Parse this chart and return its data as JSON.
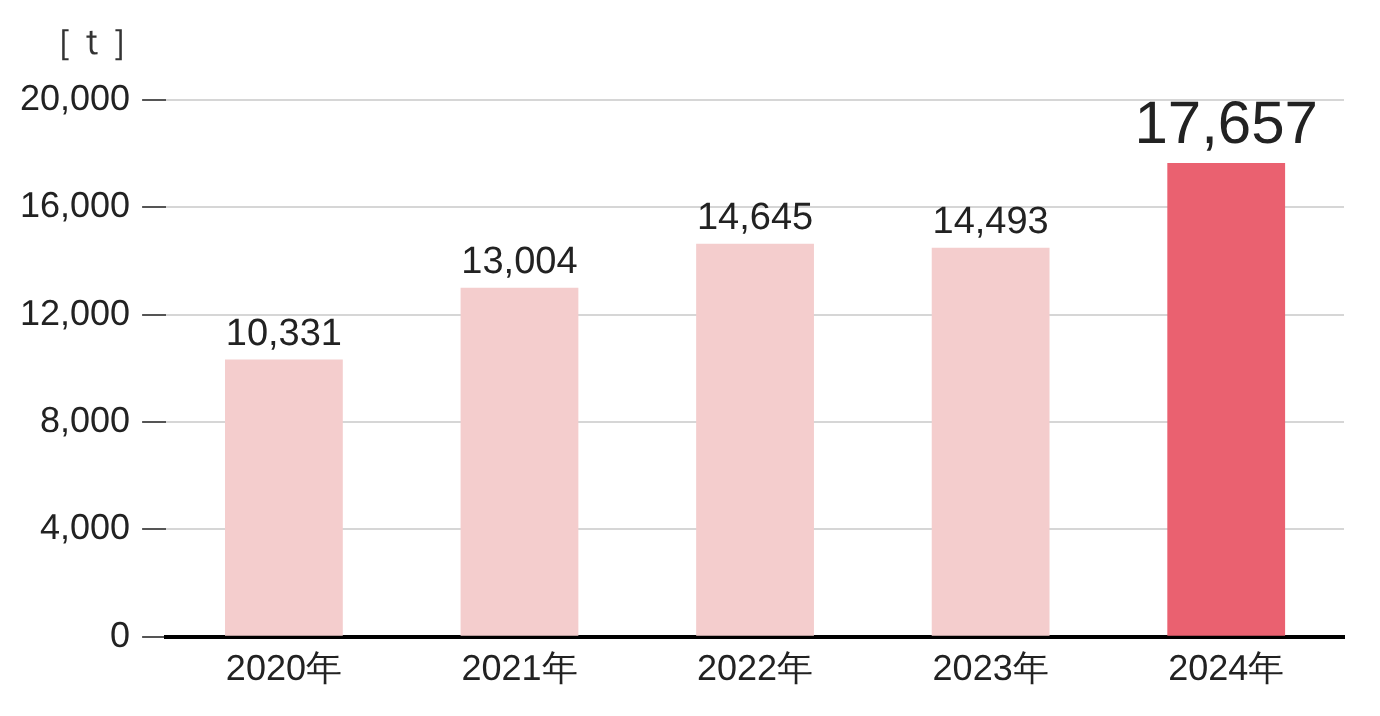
{
  "chart_data": {
    "type": "bar",
    "ylabel": "［ｔ］",
    "categories": [
      "2020年",
      "2021年",
      "2022年",
      "2023年",
      "2024年"
    ],
    "values": [
      10331,
      13004,
      14645,
      14493,
      17657
    ],
    "value_labels": [
      "10,331",
      "13,004",
      "14,645",
      "14,493",
      "17,657"
    ],
    "colors": [
      "#f4cdcd",
      "#f4cdcd",
      "#f4cdcd",
      "#f4cdcd",
      "#ea6170"
    ],
    "ylim": [
      0,
      20000
    ],
    "yticks": [
      {
        "value": 0,
        "label": "0"
      },
      {
        "value": 4000,
        "label": "4,000"
      },
      {
        "value": 8000,
        "label": "8,000"
      },
      {
        "value": 12000,
        "label": "12,000"
      },
      {
        "value": 16000,
        "label": "16,000"
      },
      {
        "value": 20000,
        "label": "20,000"
      }
    ],
    "grid": "y",
    "legend": false
  }
}
